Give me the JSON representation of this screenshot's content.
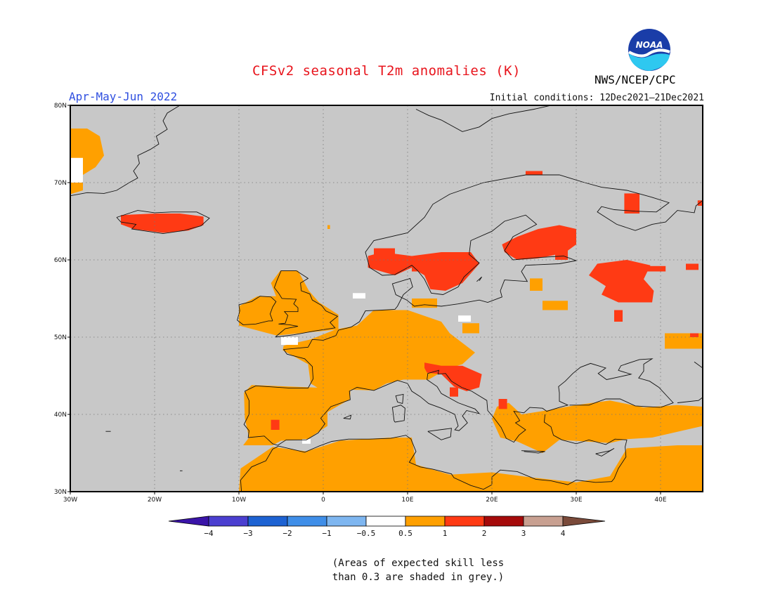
{
  "title": "CFSv2 seasonal T2m anomalies (K)",
  "period": "Apr-May-Jun 2022",
  "initial_conditions": "Initial conditions: 12Dec2021–21Dec2021",
  "agency": "NWS/NCEP/CPC",
  "logo_text": "NOAA",
  "map": {
    "projection": "lat-lon",
    "lon_range": [
      -30,
      45
    ],
    "lat_range": [
      30,
      80
    ],
    "grid": "dotted",
    "background_grey": "#c8c8c8",
    "x_ticks": [
      "30W",
      "20W",
      "10W",
      "0",
      "10E",
      "20E",
      "30E",
      "40E"
    ],
    "y_ticks": [
      "30N",
      "40N",
      "50N",
      "60N",
      "70N",
      "80N"
    ]
  },
  "colorbar": {
    "tick_labels": [
      "−4",
      "−3",
      "−2",
      "−1",
      "−0.5",
      "0.5",
      "1",
      "2",
      "3",
      "4"
    ],
    "colors": [
      "#3a14a8",
      "#4b3fd0",
      "#1d62d2",
      "#3f8ee8",
      "#7eb6f0",
      "#ffffff",
      "#ffa000",
      "#ff3a14",
      "#a50a0a",
      "#c8a091",
      "#7a4a3a"
    ]
  },
  "regions": [
    {
      "name": "greenland-east-coast",
      "level": "0.5-1",
      "lon": [
        -30,
        -26
      ],
      "lat": [
        68,
        77
      ]
    },
    {
      "name": "iceland",
      "level": "1-2",
      "lon": [
        -24,
        -14
      ],
      "lat": [
        63,
        66
      ]
    },
    {
      "name": "iberia",
      "level": "0.5-1",
      "lon": [
        -9,
        3
      ],
      "lat": [
        36,
        44
      ]
    },
    {
      "name": "north-africa",
      "level": "0.5-1",
      "lon": [
        -10,
        45
      ],
      "lat": [
        30,
        36
      ]
    },
    {
      "name": "france-central-europe",
      "level": "0.5-1",
      "lon": [
        -2,
        15
      ],
      "lat": [
        44,
        52
      ]
    },
    {
      "name": "british-isles",
      "level": "0.5-1",
      "lon": [
        -10,
        2
      ],
      "lat": [
        50,
        59
      ]
    },
    {
      "name": "alps-balkans",
      "level": "1-2",
      "lon": [
        12,
        19
      ],
      "lat": [
        42,
        47
      ]
    },
    {
      "name": "scandinavia-south",
      "level": "1-2",
      "lon": [
        8,
        18
      ],
      "lat": [
        58,
        61
      ]
    },
    {
      "name": "finland",
      "level": "1-2",
      "lon": [
        22,
        30
      ],
      "lat": [
        60,
        64
      ]
    },
    {
      "name": "western-russia",
      "level": "1-2",
      "lon": [
        32,
        39
      ],
      "lat": [
        55,
        60
      ]
    },
    {
      "name": "eastern-mediterranean",
      "level": "0.5-1",
      "lon": [
        20,
        45
      ],
      "lat": [
        34,
        42
      ]
    }
  ],
  "note": {
    "line1": "(Areas of expected skill less",
    "line2": "than 0.3 are shaded in grey.)"
  }
}
